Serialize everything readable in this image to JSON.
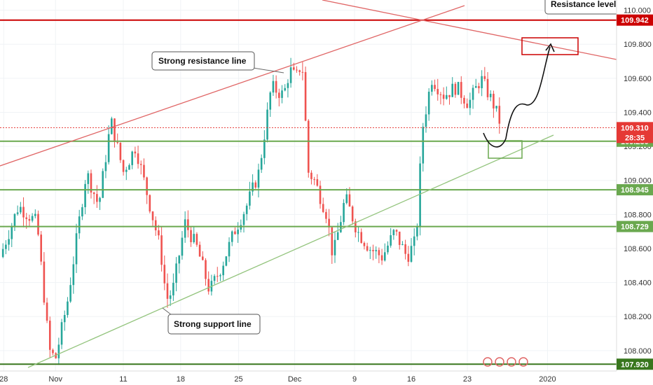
{
  "chart_data": {
    "type": "candlestick",
    "y_axis": {
      "range": [
        107.88,
        110.06
      ],
      "ticks": [
        "110.000",
        "109.800",
        "109.600",
        "109.400",
        "109.200",
        "109.000",
        "108.800",
        "108.600",
        "108.400",
        "108.200",
        "108.000"
      ],
      "tick_values": [
        110.0,
        109.8,
        109.6,
        109.4,
        109.2,
        109.0,
        108.8,
        108.6,
        108.4,
        108.2,
        108.0
      ]
    },
    "x_axis": {
      "ticks": [
        "28",
        "Nov",
        "11",
        "18",
        "25",
        "Dec",
        "9",
        "16",
        "23",
        "2020"
      ],
      "tick_pos": [
        0.006,
        0.09,
        0.2,
        0.293,
        0.387,
        0.478,
        0.575,
        0.667,
        0.758,
        0.888
      ]
    },
    "horizontal_levels": [
      {
        "label": "109.942",
        "value": 109.942,
        "color": "#cc0000",
        "style": "solid"
      },
      {
        "label": "109.230",
        "value": 109.23,
        "color": "#6aa84f",
        "style": "solid"
      },
      {
        "label": "108.945",
        "value": 108.945,
        "color": "#6aa84f",
        "style": "solid"
      },
      {
        "label": "108.729",
        "value": 108.729,
        "color": "#6aa84f",
        "style": "solid"
      },
      {
        "label": "107.920",
        "value": 107.92,
        "color": "#38761d",
        "style": "solid"
      }
    ],
    "current_price": {
      "label": "109.310",
      "value": 109.31,
      "timer": "28:35",
      "color": "#e53935"
    },
    "annotations": [
      {
        "text": "Strong resistance line"
      },
      {
        "text": "Strong support line"
      },
      {
        "text": "Resistance level"
      }
    ],
    "price_path": [
      [
        0.0,
        108.55
      ],
      [
        0.03,
        108.85
      ],
      [
        0.06,
        108.75
      ],
      [
        0.08,
        108.0
      ],
      [
        0.09,
        107.95
      ],
      [
        0.11,
        108.3
      ],
      [
        0.14,
        109.05
      ],
      [
        0.16,
        108.85
      ],
      [
        0.18,
        109.35
      ],
      [
        0.2,
        109.05
      ],
      [
        0.22,
        109.2
      ],
      [
        0.24,
        108.9
      ],
      [
        0.26,
        108.6
      ],
      [
        0.27,
        108.3
      ],
      [
        0.28,
        108.35
      ],
      [
        0.3,
        108.75
      ],
      [
        0.32,
        108.6
      ],
      [
        0.34,
        108.35
      ],
      [
        0.36,
        108.5
      ],
      [
        0.38,
        108.7
      ],
      [
        0.4,
        108.85
      ],
      [
        0.42,
        109.05
      ],
      [
        0.44,
        109.55
      ],
      [
        0.46,
        109.5
      ],
      [
        0.47,
        109.65
      ],
      [
        0.48,
        109.6
      ],
      [
        0.49,
        109.7
      ],
      [
        0.5,
        109.05
      ],
      [
        0.51,
        109.0
      ],
      [
        0.53,
        108.8
      ],
      [
        0.54,
        108.55
      ],
      [
        0.56,
        108.9
      ],
      [
        0.58,
        108.7
      ],
      [
        0.6,
        108.6
      ],
      [
        0.62,
        108.55
      ],
      [
        0.64,
        108.7
      ],
      [
        0.66,
        108.55
      ],
      [
        0.675,
        108.65
      ],
      [
        0.685,
        109.3
      ],
      [
        0.7,
        109.6
      ],
      [
        0.72,
        109.5
      ],
      [
        0.74,
        109.55
      ],
      [
        0.76,
        109.45
      ],
      [
        0.78,
        109.6
      ],
      [
        0.8,
        109.45
      ],
      [
        0.81,
        109.35
      ]
    ],
    "colors": {
      "up": "#26a69a",
      "down": "#ef5350"
    }
  }
}
